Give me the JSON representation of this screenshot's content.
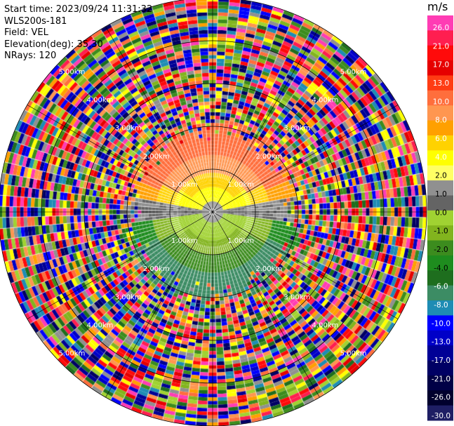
{
  "info": {
    "start_time": "Start time: 2023/09/24 11:31:32",
    "instrument": "WLS200s-181",
    "field": "Field: VEL",
    "elevation": "Elevation(deg): 35.30",
    "nrays": "NRays: 120"
  },
  "chart_data": {
    "type": "heatmap",
    "projection": "PPI polar",
    "field": "VEL",
    "n_rays": 120,
    "elevation_deg": 35.3,
    "max_range_km": 5.0,
    "range_rings_km": [
      1,
      2,
      3,
      4,
      5
    ],
    "range_ring_labels": [
      "1.00km",
      "2.00km",
      "3.00km",
      "4.00km",
      "5.00km"
    ],
    "spokes_deg": [
      0,
      30,
      60,
      90,
      120,
      150,
      180,
      210,
      240,
      270,
      300,
      330
    ],
    "colorbar": {
      "unit": "m/s",
      "tick_labels": [
        "26.0",
        "21.0",
        "17.0",
        "13.0",
        "10.0",
        "8.0",
        "6.0",
        "4.0",
        "2.0",
        "1.0",
        "0.0",
        "-1.0",
        "-2.0",
        "-4.0",
        "-6.0",
        "-8.0",
        "-10.0",
        "-13.0",
        "-17.0",
        "-21.0",
        "-26.0",
        "-30.0"
      ],
      "colors": [
        "#ff3cb4",
        "#ff1e50",
        "#ff0a0a",
        "#e60000",
        "#ff3c14",
        "#ff6e3c",
        "#ff9650",
        "#ffa000",
        "#ffd200",
        "#ffff00",
        "#ffff64",
        "#909090",
        "#646464",
        "#a0d232",
        "#82b41e",
        "#3c8c1e",
        "#1e8c1e",
        "#1e6e1e",
        "#3c8c64",
        "#1e8cb4",
        "#0000ff",
        "#0000c8",
        "#000096",
        "#000064",
        "#000046",
        "#00002d",
        "#1e1e64"
      ]
    }
  }
}
